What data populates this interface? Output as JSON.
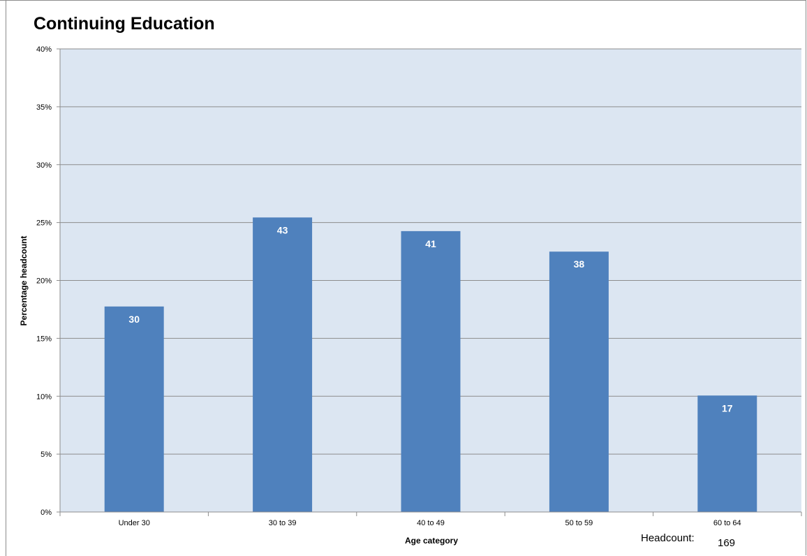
{
  "chart_data": {
    "type": "bar",
    "title": "Continuing Education",
    "xlabel": "Age category",
    "ylabel": "Percentage headcount",
    "categories": [
      "Under 30",
      "30 to 39",
      "40 to 49",
      "50 to 59",
      "60 to 64"
    ],
    "values": [
      17.75,
      25.44,
      24.26,
      22.49,
      10.06
    ],
    "data_labels": [
      "30",
      "43",
      "41",
      "38",
      "17"
    ],
    "ylim": [
      0,
      40
    ],
    "yticks": [
      "0%",
      "5%",
      "10%",
      "15%",
      "20%",
      "25%",
      "30%",
      "35%",
      "40%"
    ],
    "grid": true,
    "colors": {
      "bar": "#4f81bd",
      "plot_bg": "#dce6f2",
      "grid": "#8c8c8c",
      "data_label": "#ffffff"
    }
  },
  "footer": {
    "headcount_label": "Headcount:",
    "headcount_value": "169"
  }
}
